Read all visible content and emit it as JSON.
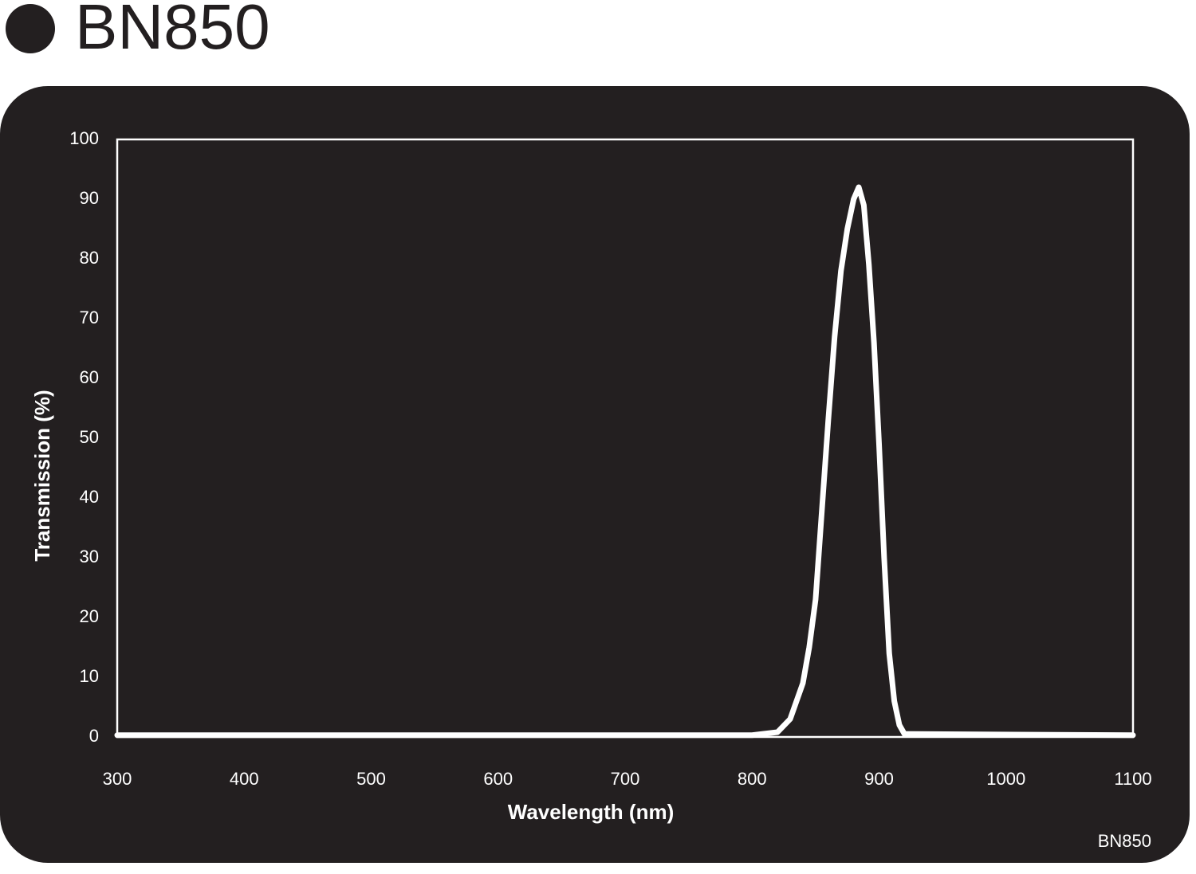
{
  "chart_data": {
    "type": "line",
    "title": "BN850",
    "x_label": "Wavelength (nm)",
    "y_label": "Transmission (%)",
    "annotation": "BN850",
    "x": [
      300,
      800,
      820,
      830,
      840,
      845,
      850,
      855,
      860,
      865,
      870,
      875,
      880,
      884,
      888,
      892,
      896,
      900,
      904,
      908,
      912,
      916,
      920,
      1100
    ],
    "series": [
      {
        "name": "BN850",
        "color": "#ffffff",
        "values": [
          0.3,
          0.3,
          0.8,
          3,
          9,
          15,
          23,
          38,
          53,
          67,
          78,
          85,
          90,
          92,
          89,
          79,
          66,
          49,
          30,
          14,
          6,
          2,
          0.5,
          0.3
        ]
      }
    ],
    "xlim": [
      300,
      1100
    ],
    "xticks": [
      300,
      400,
      500,
      600,
      700,
      800,
      900,
      1000,
      1100
    ],
    "ylim": [
      0,
      100
    ],
    "yticks": [
      0,
      10,
      20,
      30,
      40,
      50,
      60,
      70,
      80,
      90,
      100
    ],
    "grid": false
  }
}
